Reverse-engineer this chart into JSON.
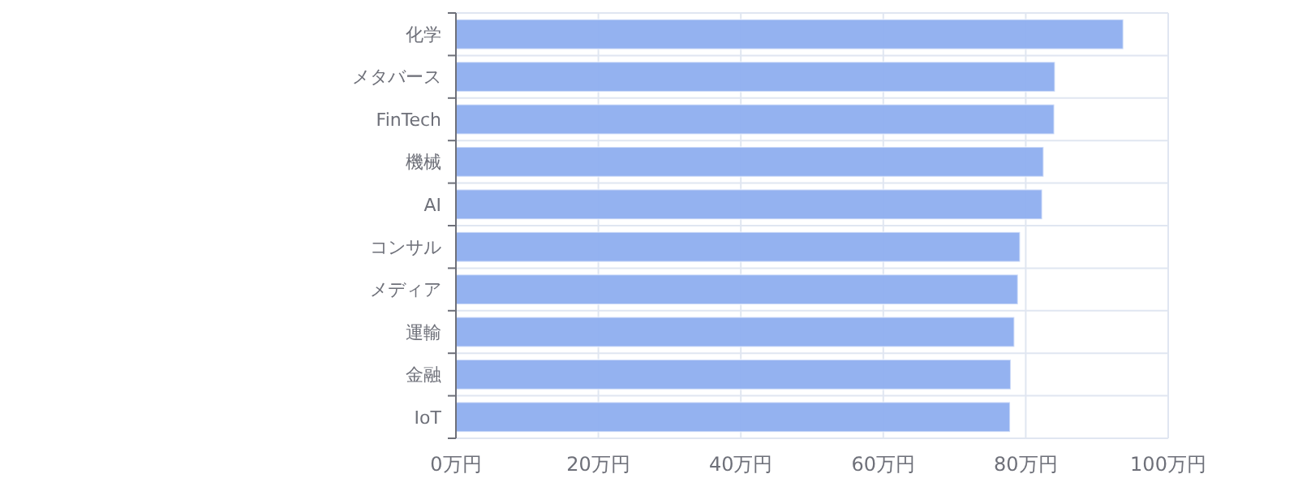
{
  "chart_data": {
    "type": "bar",
    "orientation": "horizontal",
    "categories": [
      "化学",
      "メタバース",
      "FinTech",
      "機械",
      "AI",
      "コンサル",
      "メディア",
      "運輸",
      "金融",
      "IoT"
    ],
    "values": [
      93.7,
      84.1,
      84.0,
      82.5,
      82.3,
      79.2,
      78.9,
      78.4,
      77.9,
      77.8
    ],
    "color": "#8eaeef",
    "xlim": [
      0,
      100
    ],
    "xticks": [
      {
        "value": 0,
        "label": "0万円"
      },
      {
        "value": 20,
        "label": "20万円"
      },
      {
        "value": 40,
        "label": "40万円"
      },
      {
        "value": 60,
        "label": "60万円"
      },
      {
        "value": 80,
        "label": "80万円"
      },
      {
        "value": 100,
        "label": "100万円"
      }
    ],
    "grid": true
  }
}
